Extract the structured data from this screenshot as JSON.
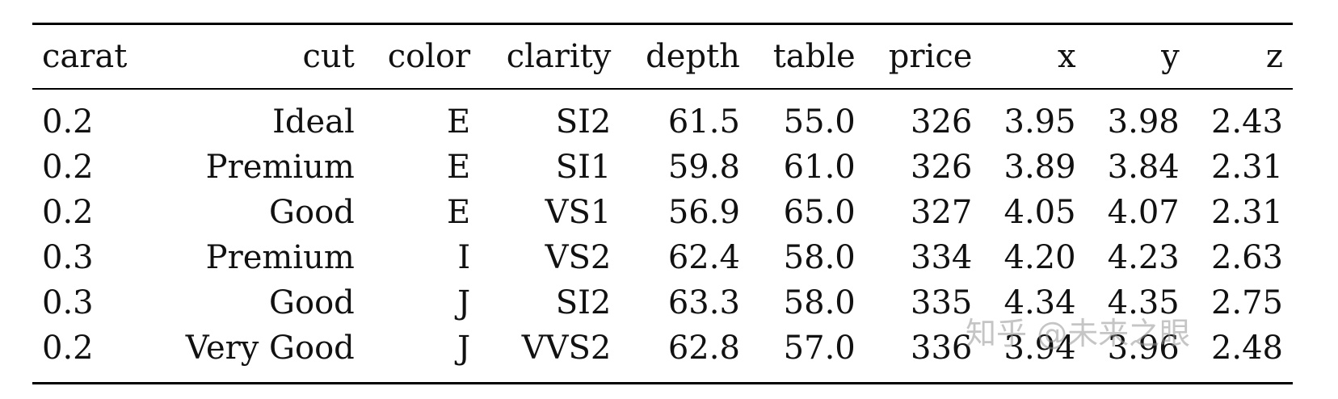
{
  "table": {
    "columns": [
      "carat",
      "cut",
      "color",
      "clarity",
      "depth",
      "table",
      "price",
      "x",
      "y",
      "z"
    ],
    "align": [
      "l",
      "r",
      "r",
      "r",
      "r",
      "r",
      "r",
      "r",
      "r",
      "r"
    ],
    "rows": [
      [
        "0.2",
        "Ideal",
        "E",
        "SI2",
        "61.5",
        "55.0",
        "326",
        "3.95",
        "3.98",
        "2.43"
      ],
      [
        "0.2",
        "Premium",
        "E",
        "SI1",
        "59.8",
        "61.0",
        "326",
        "3.89",
        "3.84",
        "2.31"
      ],
      [
        "0.2",
        "Good",
        "E",
        "VS1",
        "56.9",
        "65.0",
        "327",
        "4.05",
        "4.07",
        "2.31"
      ],
      [
        "0.3",
        "Premium",
        "I",
        "VS2",
        "62.4",
        "58.0",
        "334",
        "4.20",
        "4.23",
        "2.63"
      ],
      [
        "0.3",
        "Good",
        "J",
        "SI2",
        "63.3",
        "58.0",
        "335",
        "4.34",
        "4.35",
        "2.75"
      ],
      [
        "0.2",
        "Very Good",
        "J",
        "VVS2",
        "62.8",
        "57.0",
        "336",
        "3.94",
        "3.96",
        "2.48"
      ]
    ]
  },
  "watermark": {
    "text": "知乎 @未来之眼"
  }
}
